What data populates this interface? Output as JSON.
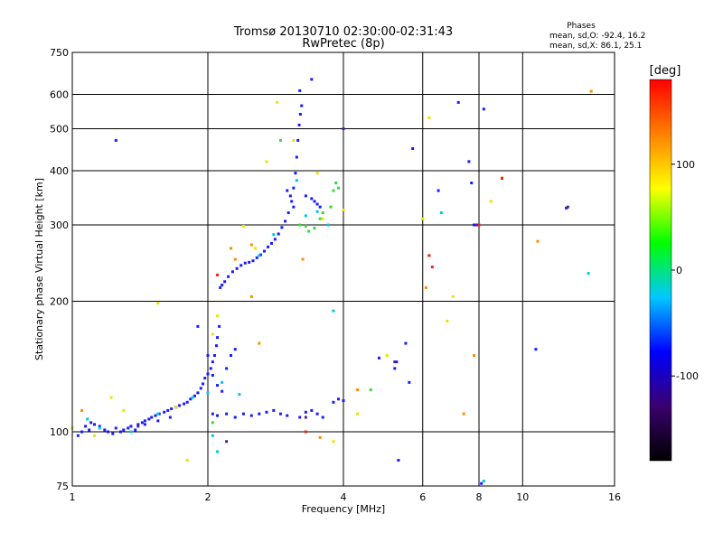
{
  "chart_data": {
    "type": "scatter",
    "title": "Tromsø 20130710 02:30:00-02:31:43",
    "subtitle": "RwPretec (8p)",
    "xlabel": "Frequency [MHz]",
    "ylabel": "Stationary phase Virtual Height [km]",
    "x_scale": "log",
    "y_scale": "log",
    "xlim": [
      1,
      16
    ],
    "ylim": [
      75,
      750
    ],
    "x_ticks": [
      1,
      2,
      4,
      6,
      8,
      10,
      16
    ],
    "y_ticks": [
      75,
      100,
      200,
      300,
      400,
      500,
      600,
      750
    ],
    "grid": true,
    "stats": {
      "heading": "Phases",
      "line_o": "mean, sd,O: -92.4, 16.2",
      "line_x": "mean, sd,X:  86.1, 25.1"
    },
    "colorbar": {
      "label": "[deg]",
      "range": [
        -180,
        180
      ],
      "ticks": [
        100,
        0,
        -100
      ],
      "colors": [
        "#000000",
        "#3a006e",
        "#0000ff",
        "#00c8ff",
        "#00ff00",
        "#ffff00",
        "#ff8000",
        "#ff0000"
      ]
    },
    "series": [
      {
        "color_class": "blue",
        "points": [
          [
            1.03,
            98
          ],
          [
            1.05,
            100
          ],
          [
            1.07,
            103
          ],
          [
            1.09,
            101
          ],
          [
            1.1,
            105
          ],
          [
            1.12,
            104
          ],
          [
            1.15,
            103
          ],
          [
            1.18,
            101
          ],
          [
            1.2,
            100
          ],
          [
            1.23,
            99
          ],
          [
            1.25,
            102
          ],
          [
            1.28,
            100
          ],
          [
            1.3,
            101
          ],
          [
            1.33,
            102
          ],
          [
            1.35,
            103
          ],
          [
            1.38,
            101
          ],
          [
            1.4,
            104
          ],
          [
            1.43,
            105
          ],
          [
            1.45,
            106
          ],
          [
            1.48,
            107
          ],
          [
            1.5,
            108
          ],
          [
            1.53,
            109
          ],
          [
            1.56,
            110
          ],
          [
            1.6,
            111
          ],
          [
            1.63,
            112
          ],
          [
            1.66,
            113
          ],
          [
            1.7,
            114
          ],
          [
            1.73,
            115
          ],
          [
            1.77,
            116
          ],
          [
            1.8,
            117
          ],
          [
            1.83,
            119
          ],
          [
            1.87,
            121
          ],
          [
            1.9,
            123
          ],
          [
            1.93,
            126
          ],
          [
            1.95,
            129
          ],
          [
            1.97,
            133
          ],
          [
            2.0,
            136
          ],
          [
            2.03,
            140
          ],
          [
            2.05,
            145
          ],
          [
            2.07,
            150
          ],
          [
            2.09,
            158
          ],
          [
            2.1,
            165
          ],
          [
            2.12,
            175
          ],
          [
            2.13,
            215
          ],
          [
            2.15,
            218
          ],
          [
            2.18,
            222
          ],
          [
            2.22,
            228
          ],
          [
            2.27,
            234
          ],
          [
            2.32,
            238
          ],
          [
            2.37,
            242
          ],
          [
            2.42,
            245
          ],
          [
            2.47,
            246
          ],
          [
            2.52,
            248
          ],
          [
            2.57,
            252
          ],
          [
            2.62,
            256
          ],
          [
            2.67,
            261
          ],
          [
            2.72,
            267
          ],
          [
            2.77,
            272
          ],
          [
            2.82,
            278
          ],
          [
            2.87,
            286
          ],
          [
            2.92,
            296
          ],
          [
            2.97,
            306
          ],
          [
            3.02,
            320
          ],
          [
            3.07,
            340
          ],
          [
            3.1,
            365
          ],
          [
            3.13,
            395
          ],
          [
            3.15,
            430
          ],
          [
            3.17,
            470
          ],
          [
            3.19,
            510
          ],
          [
            3.21,
            540
          ],
          [
            3.23,
            565
          ],
          [
            3.2,
            612
          ],
          [
            2.05,
            110
          ],
          [
            2.1,
            109
          ],
          [
            2.2,
            110
          ],
          [
            2.3,
            108
          ],
          [
            2.4,
            110
          ],
          [
            2.5,
            109
          ],
          [
            2.6,
            110
          ],
          [
            2.7,
            111
          ],
          [
            2.8,
            112
          ],
          [
            2.9,
            110
          ],
          [
            3.0,
            109
          ],
          [
            3.2,
            108
          ],
          [
            3.3,
            111
          ],
          [
            3.4,
            112
          ],
          [
            3.5,
            110
          ],
          [
            3.6,
            108
          ],
          [
            3.8,
            117
          ],
          [
            3.9,
            119
          ],
          [
            4.0,
            118
          ],
          [
            3.3,
            350
          ],
          [
            3.4,
            345
          ],
          [
            3.45,
            340
          ],
          [
            3.5,
            335
          ],
          [
            3.55,
            330
          ],
          [
            3.0,
            360
          ],
          [
            3.05,
            350
          ],
          [
            3.1,
            330
          ],
          [
            3.4,
            650
          ],
          [
            5.2,
            140
          ],
          [
            5.25,
            145
          ],
          [
            4.8,
            148
          ],
          [
            5.5,
            160
          ],
          [
            5.6,
            130
          ],
          [
            5.7,
            450
          ],
          [
            1.25,
            470
          ],
          [
            1.9,
            175
          ],
          [
            2.0,
            150
          ],
          [
            2.05,
            135
          ],
          [
            2.1,
            128
          ],
          [
            2.15,
            124
          ],
          [
            2.2,
            140
          ],
          [
            2.25,
            150
          ],
          [
            2.3,
            155
          ],
          [
            1.65,
            108
          ],
          [
            1.55,
            106
          ],
          [
            1.45,
            104
          ],
          [
            6.5,
            360
          ],
          [
            7.2,
            575
          ],
          [
            8.2,
            555
          ],
          [
            7.6,
            420
          ],
          [
            7.8,
            300
          ],
          [
            12.5,
            328
          ],
          [
            10.7,
            155
          ],
          [
            5.3,
            86
          ],
          [
            7.7,
            375
          ],
          [
            8.1,
            76
          ]
        ]
      },
      {
        "color_class": "cyan",
        "points": [
          [
            1.08,
            107
          ],
          [
            1.15,
            102
          ],
          [
            1.35,
            100
          ],
          [
            1.55,
            110
          ],
          [
            1.85,
            120
          ],
          [
            2.0,
            123
          ],
          [
            2.15,
            130
          ],
          [
            2.35,
            122
          ],
          [
            2.6,
            255
          ],
          [
            2.8,
            285
          ],
          [
            3.15,
            380
          ],
          [
            3.3,
            315
          ],
          [
            3.5,
            322
          ],
          [
            3.7,
            300
          ],
          [
            6.6,
            320
          ],
          [
            14.0,
            232
          ],
          [
            3.8,
            190
          ],
          [
            8.2,
            77
          ],
          [
            2.05,
            98
          ],
          [
            2.1,
            90
          ]
        ]
      },
      {
        "color_class": "green",
        "points": [
          [
            3.2,
            300
          ],
          [
            3.3,
            298
          ],
          [
            3.35,
            290
          ],
          [
            3.45,
            295
          ],
          [
            3.55,
            310
          ],
          [
            3.6,
            320
          ],
          [
            3.75,
            330
          ],
          [
            3.8,
            360
          ],
          [
            3.85,
            375
          ],
          [
            3.9,
            365
          ],
          [
            2.9,
            470
          ],
          [
            4.6,
            125
          ],
          [
            2.05,
            105
          ]
        ]
      },
      {
        "color_class": "yellow",
        "points": [
          [
            1.55,
            198
          ],
          [
            1.0,
            102
          ],
          [
            1.3,
            112
          ],
          [
            1.7,
            114
          ],
          [
            2.05,
            168
          ],
          [
            2.1,
            185
          ],
          [
            2.4,
            298
          ],
          [
            2.55,
            265
          ],
          [
            2.7,
            420
          ],
          [
            2.85,
            575
          ],
          [
            3.1,
            470
          ],
          [
            3.5,
            395
          ],
          [
            3.6,
            310
          ],
          [
            3.8,
            95
          ],
          [
            4.0,
            325
          ],
          [
            4.3,
            110
          ],
          [
            5.0,
            150
          ],
          [
            6.2,
            530
          ],
          [
            6.8,
            180
          ],
          [
            7.0,
            205
          ],
          [
            8.5,
            340
          ],
          [
            1.8,
            86
          ],
          [
            6.0,
            310
          ],
          [
            1.22,
            120
          ],
          [
            1.12,
            98
          ]
        ]
      },
      {
        "color_class": "orange",
        "points": [
          [
            2.25,
            265
          ],
          [
            2.3,
            250
          ],
          [
            2.5,
            270
          ],
          [
            3.25,
            250
          ],
          [
            3.55,
            97
          ],
          [
            6.1,
            215
          ],
          [
            6.2,
            255
          ],
          [
            7.4,
            110
          ],
          [
            7.8,
            150
          ],
          [
            9.0,
            385
          ],
          [
            10.8,
            275
          ],
          [
            14.2,
            610
          ],
          [
            1.05,
            112
          ],
          [
            2.6,
            160
          ],
          [
            2.5,
            205
          ],
          [
            4.3,
            125
          ]
        ]
      },
      {
        "color_class": "red",
        "points": [
          [
            6.2,
            255
          ],
          [
            6.3,
            240
          ],
          [
            8.0,
            300
          ],
          [
            9.0,
            384
          ],
          [
            3.3,
            100
          ],
          [
            2.1,
            230
          ]
        ]
      },
      {
        "color_class": "purple",
        "points": [
          [
            4.0,
            500
          ],
          [
            7.9,
            300
          ],
          [
            12.6,
            330
          ],
          [
            5.2,
            145
          ],
          [
            3.3,
            108
          ],
          [
            2.2,
            95
          ],
          [
            1.4,
            103
          ]
        ]
      }
    ]
  }
}
